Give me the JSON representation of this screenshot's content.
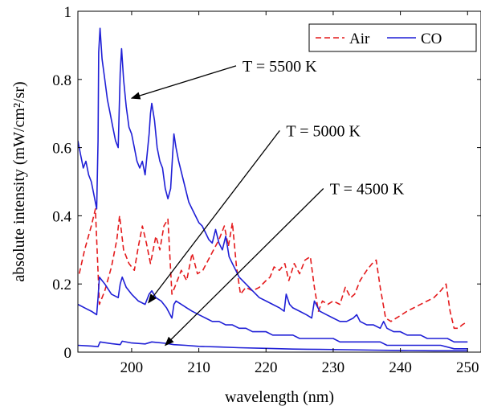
{
  "chart_data": {
    "type": "line",
    "title": "",
    "xlabel": "wavelength (nm)",
    "ylabel": "absolute intensity (mW/cm²/sr)",
    "xlim": [
      192,
      252
    ],
    "ylim": [
      0,
      1.0
    ],
    "xticks": [
      {
        "value": 200,
        "label": "200"
      },
      {
        "value": 210,
        "label": "210"
      },
      {
        "value": 220,
        "label": "220"
      },
      {
        "value": 230,
        "label": "230"
      },
      {
        "value": 240,
        "label": "240"
      },
      {
        "value": 250,
        "label": "250"
      }
    ],
    "yticks": [
      {
        "value": 0,
        "label": "0"
      },
      {
        "value": 0.2,
        "label": "0.2"
      },
      {
        "value": 0.4,
        "label": "0.4"
      },
      {
        "value": 0.6,
        "label": "0.6"
      },
      {
        "value": 0.8,
        "label": "0.8"
      },
      {
        "value": 1.0,
        "label": "1"
      }
    ],
    "grid": false,
    "legend_position": "top-right",
    "legend": [
      {
        "label": "Air",
        "color": "#e41a1c",
        "style": "dashed"
      },
      {
        "label": "CO",
        "color": "#1f1fd6",
        "style": "solid"
      }
    ],
    "series": [
      {
        "name": "Air",
        "color": "#e41a1c",
        "style": "dashed",
        "x": [
          192.2,
          193.0,
          194.0,
          194.6,
          195.2,
          196.0,
          197.0,
          197.8,
          198.2,
          198.8,
          199.6,
          200.4,
          201.0,
          201.6,
          202.2,
          202.8,
          203.6,
          204.2,
          204.8,
          205.4,
          206.0,
          206.6,
          207.4,
          208.2,
          209.0,
          209.8,
          210.6,
          211.4,
          212.2,
          213.0,
          213.8,
          214.4,
          215.0,
          215.6,
          216.2,
          217.0,
          218.0,
          219.0,
          220.0,
          220.6,
          221.2,
          222.0,
          222.8,
          223.4,
          224.2,
          225.0,
          225.8,
          226.6,
          227.2,
          227.8,
          228.4,
          229.2,
          230.0,
          231.0,
          231.8,
          232.6,
          233.2,
          234.0,
          235.0,
          235.8,
          236.4,
          237.0,
          237.8,
          238.6,
          239.4,
          240.2,
          241.0,
          242.0,
          243.0,
          244.0,
          245.0,
          246.0,
          246.8,
          247.4,
          248.0,
          248.6,
          249.2,
          250.0
        ],
        "y": [
          0.23,
          0.3,
          0.37,
          0.42,
          0.14,
          0.18,
          0.25,
          0.33,
          0.4,
          0.3,
          0.26,
          0.24,
          0.31,
          0.37,
          0.32,
          0.26,
          0.34,
          0.3,
          0.37,
          0.39,
          0.17,
          0.2,
          0.24,
          0.21,
          0.29,
          0.23,
          0.24,
          0.27,
          0.3,
          0.33,
          0.37,
          0.31,
          0.38,
          0.25,
          0.17,
          0.19,
          0.18,
          0.19,
          0.21,
          0.22,
          0.25,
          0.24,
          0.26,
          0.21,
          0.26,
          0.23,
          0.27,
          0.28,
          0.19,
          0.12,
          0.15,
          0.14,
          0.15,
          0.14,
          0.19,
          0.16,
          0.17,
          0.21,
          0.24,
          0.26,
          0.27,
          0.19,
          0.1,
          0.09,
          0.1,
          0.11,
          0.12,
          0.13,
          0.14,
          0.15,
          0.16,
          0.18,
          0.2,
          0.12,
          0.07,
          0.07,
          0.08,
          0.09
        ]
      },
      {
        "name": "CO",
        "curve_label": "T = 5500 K",
        "color": "#1f1fd6",
        "style": "solid",
        "x": [
          192.0,
          192.4,
          192.8,
          193.2,
          193.6,
          194.0,
          194.4,
          194.8,
          195.0,
          195.1,
          195.3,
          195.6,
          196.0,
          196.4,
          196.8,
          197.2,
          197.6,
          198.0,
          198.3,
          198.5,
          198.8,
          199.2,
          199.6,
          200.0,
          200.4,
          200.8,
          201.2,
          201.6,
          202.0,
          202.3,
          202.6,
          202.8,
          203.0,
          203.4,
          203.8,
          204.2,
          204.6,
          205.0,
          205.4,
          205.8,
          206.1,
          206.3,
          206.6,
          207.0,
          207.5,
          208.0,
          208.5,
          209.0,
          209.5,
          210.0,
          210.5,
          211.0,
          211.5,
          212.0,
          212.5,
          213.0,
          213.5,
          214.0,
          214.5,
          215.0,
          215.5,
          216.0,
          217.0,
          218.0,
          219.0,
          220.0,
          221.0,
          222.0,
          222.7,
          223.0,
          223.5,
          224.0,
          225.0,
          226.0,
          226.8,
          227.2,
          228.0,
          229.0,
          230.0,
          231.0,
          232.0,
          233.0,
          233.5,
          234.0,
          235.0,
          236.0,
          237.0,
          237.5,
          238.0,
          239.0,
          240.0,
          241.0,
          242.0,
          243.0,
          244.0,
          245.0,
          246.0,
          247.0,
          248.0,
          249.0,
          250.0
        ],
        "y": [
          0.62,
          0.58,
          0.54,
          0.56,
          0.52,
          0.5,
          0.46,
          0.42,
          0.62,
          0.88,
          0.95,
          0.86,
          0.8,
          0.74,
          0.7,
          0.66,
          0.62,
          0.6,
          0.82,
          0.89,
          0.8,
          0.72,
          0.66,
          0.64,
          0.6,
          0.56,
          0.54,
          0.56,
          0.52,
          0.58,
          0.64,
          0.7,
          0.73,
          0.68,
          0.6,
          0.56,
          0.54,
          0.48,
          0.45,
          0.48,
          0.58,
          0.64,
          0.6,
          0.56,
          0.52,
          0.48,
          0.44,
          0.42,
          0.4,
          0.38,
          0.37,
          0.35,
          0.33,
          0.32,
          0.36,
          0.32,
          0.3,
          0.34,
          0.28,
          0.26,
          0.24,
          0.22,
          0.2,
          0.18,
          0.16,
          0.15,
          0.14,
          0.13,
          0.12,
          0.17,
          0.14,
          0.13,
          0.12,
          0.11,
          0.1,
          0.15,
          0.12,
          0.11,
          0.1,
          0.09,
          0.09,
          0.1,
          0.11,
          0.09,
          0.08,
          0.08,
          0.07,
          0.09,
          0.07,
          0.06,
          0.06,
          0.05,
          0.05,
          0.05,
          0.04,
          0.04,
          0.04,
          0.04,
          0.03,
          0.03,
          0.03
        ]
      },
      {
        "name": "CO",
        "curve_label": "T = 5000 K",
        "color": "#1f1fd6",
        "style": "solid",
        "x": [
          192.0,
          193.0,
          194.0,
          194.8,
          195.0,
          195.2,
          196.0,
          197.0,
          198.0,
          198.3,
          198.6,
          199.2,
          200.0,
          201.0,
          202.0,
          202.6,
          203.0,
          203.6,
          204.4,
          205.2,
          206.0,
          206.3,
          206.6,
          207.4,
          208.2,
          209.0,
          210.0,
          211.0,
          212.0,
          213.0,
          214.0,
          215.0,
          216.0,
          217.0,
          218.0,
          219.0,
          220.0,
          221.0,
          222.0,
          223.0,
          224.0,
          225.0,
          226.0,
          227.0,
          228.0,
          229.0,
          230.0,
          231.0,
          232.0,
          233.0,
          234.0,
          235.0,
          236.0,
          237.0,
          238.0,
          239.0,
          240.0,
          242.0,
          244.0,
          246.0,
          248.0,
          250.0
        ],
        "y": [
          0.14,
          0.13,
          0.12,
          0.11,
          0.16,
          0.22,
          0.2,
          0.17,
          0.16,
          0.2,
          0.22,
          0.19,
          0.17,
          0.15,
          0.14,
          0.17,
          0.18,
          0.16,
          0.15,
          0.13,
          0.1,
          0.14,
          0.15,
          0.14,
          0.13,
          0.12,
          0.11,
          0.1,
          0.09,
          0.09,
          0.08,
          0.08,
          0.07,
          0.07,
          0.06,
          0.06,
          0.06,
          0.05,
          0.05,
          0.05,
          0.05,
          0.04,
          0.04,
          0.04,
          0.04,
          0.04,
          0.04,
          0.03,
          0.03,
          0.03,
          0.03,
          0.03,
          0.03,
          0.03,
          0.02,
          0.02,
          0.02,
          0.02,
          0.02,
          0.02,
          0.01,
          0.01
        ]
      },
      {
        "name": "CO",
        "curve_label": "T = 4500 K",
        "color": "#1f1fd6",
        "style": "solid",
        "x": [
          192.0,
          194.0,
          195.0,
          195.3,
          197.0,
          198.3,
          198.6,
          200.0,
          202.0,
          203.0,
          205.0,
          206.3,
          208.0,
          210.0,
          213.0,
          216.0,
          220.0,
          224.0,
          228.0,
          232.0,
          236.0,
          240.0,
          245.0,
          250.0
        ],
        "y": [
          0.02,
          0.018,
          0.016,
          0.03,
          0.025,
          0.022,
          0.032,
          0.027,
          0.024,
          0.03,
          0.026,
          0.022,
          0.02,
          0.017,
          0.015,
          0.013,
          0.011,
          0.009,
          0.008,
          0.007,
          0.006,
          0.005,
          0.004,
          0.004
        ]
      }
    ],
    "annotations": [
      {
        "text": "T = 5500 K",
        "text_x": 216.5,
        "text_y": 0.84,
        "arrow_to_x": 200.0,
        "arrow_to_y": 0.745
      },
      {
        "text": "T = 5000 K",
        "text_x": 223.0,
        "text_y": 0.65,
        "arrow_to_x": 202.5,
        "arrow_to_y": 0.145
      },
      {
        "text": "T = 4500 K",
        "text_x": 229.5,
        "text_y": 0.48,
        "arrow_to_x": 205.0,
        "arrow_to_y": 0.02
      }
    ]
  }
}
